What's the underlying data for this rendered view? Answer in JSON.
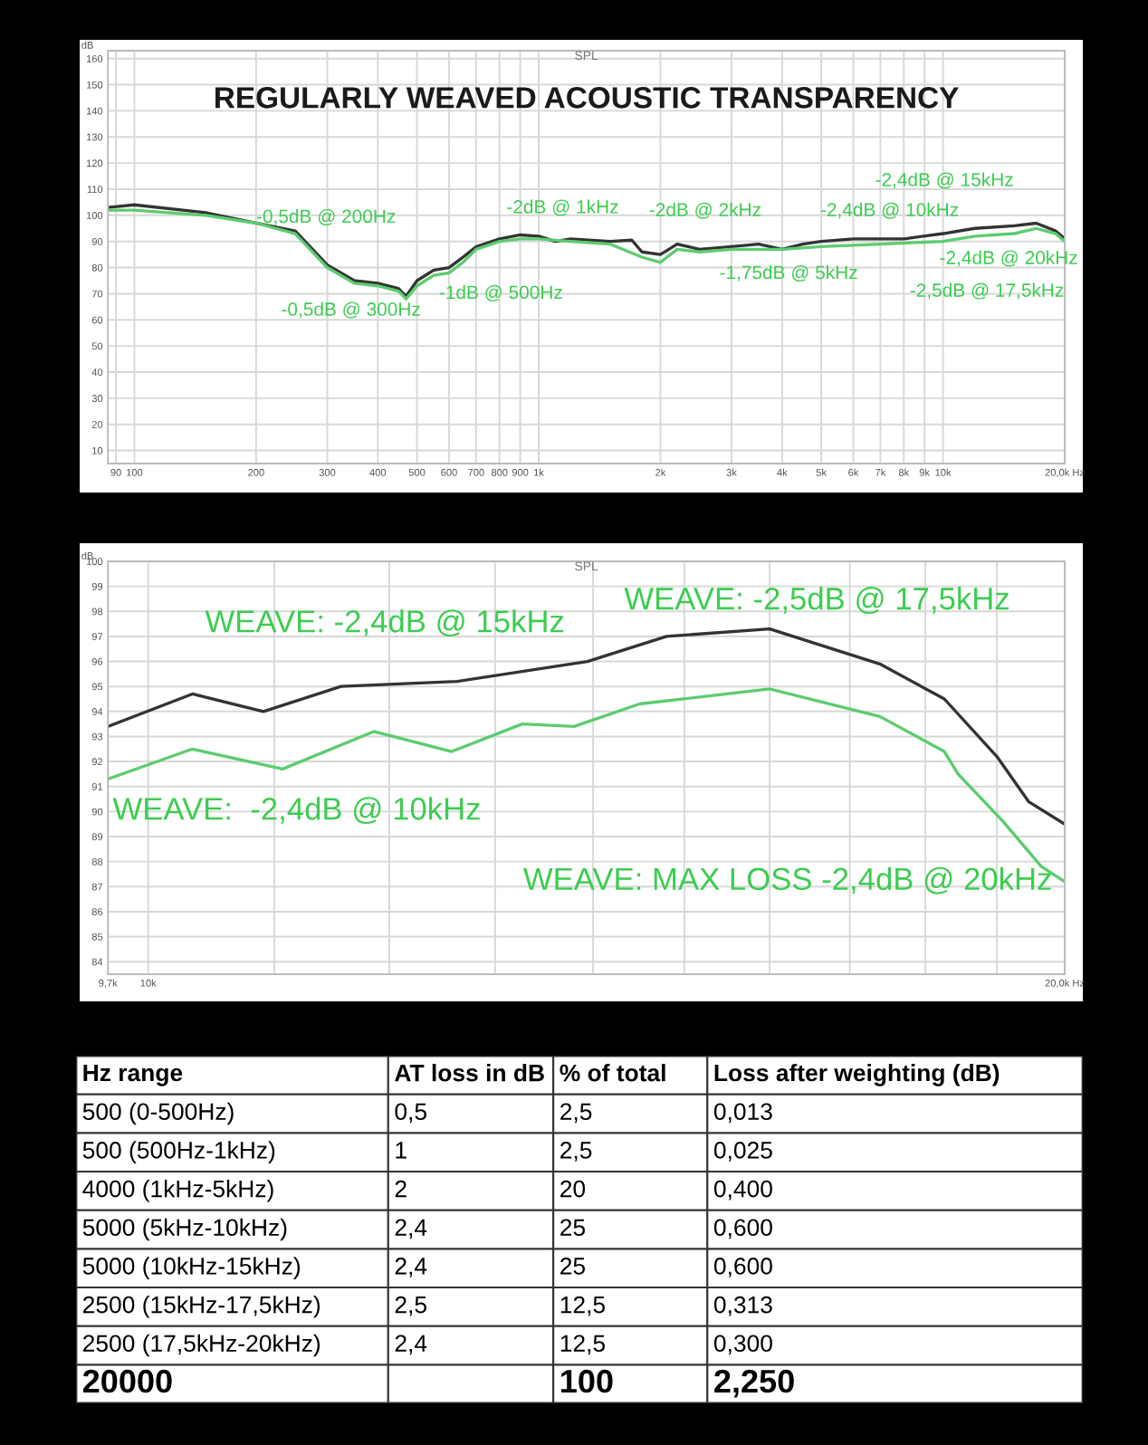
{
  "chart_data": [
    {
      "type": "line",
      "title": "SPL",
      "subtitle": "REGULARLY WEAVED ACOUSTIC TRANSPARENCY",
      "ylabel": "dB",
      "log": "x",
      "grid": true,
      "marker": "none",
      "line_style": "solid",
      "xlim": [
        86,
        20000
      ],
      "ylim": [
        5,
        163
      ],
      "xticks": [
        {
          "value": 90,
          "label": "90"
        },
        100,
        200,
        300,
        400,
        500,
        600,
        700,
        800,
        900,
        {
          "value": 1000,
          "label": "1k"
        },
        {
          "value": 2000,
          "label": "2k"
        },
        {
          "value": 3000,
          "label": "3k"
        },
        {
          "value": 4000,
          "label": "4k"
        },
        {
          "value": 5000,
          "label": "5k"
        },
        {
          "value": 6000,
          "label": "6k"
        },
        {
          "value": 7000,
          "label": "7k"
        },
        {
          "value": 8000,
          "label": "8k"
        },
        {
          "value": 9000,
          "label": "9k"
        },
        {
          "value": 10000,
          "label": "10k"
        },
        {
          "value": 20000,
          "label": "20,0k Hz"
        }
      ],
      "yticks": [
        10,
        20,
        30,
        40,
        50,
        60,
        70,
        80,
        90,
        100,
        110,
        120,
        130,
        140,
        150,
        160
      ],
      "series": [
        {
          "color": "#333333",
          "x": [
            86,
            100,
            150,
            200,
            250,
            300,
            350,
            400,
            450,
            470,
            500,
            550,
            600,
            650,
            700,
            800,
            900,
            1000,
            1100,
            1200,
            1500,
            1700,
            1800,
            2000,
            2200,
            2500,
            3000,
            3500,
            4000,
            4500,
            5000,
            6000,
            7000,
            8000,
            10000,
            12000,
            15000,
            17000,
            19000,
            20000
          ],
          "values": [
            103,
            104,
            101,
            97,
            94,
            81,
            75,
            74,
            72,
            69,
            75,
            79,
            80,
            84,
            88,
            91,
            92.5,
            92,
            90,
            91,
            90,
            90.5,
            86,
            85,
            89,
            87,
            88,
            89,
            87,
            89,
            90,
            91,
            91,
            91,
            93,
            95,
            96,
            97,
            94,
            91
          ]
        },
        {
          "color": "#5ccc6f",
          "x": [
            86,
            100,
            150,
            200,
            250,
            300,
            350,
            400,
            450,
            470,
            500,
            550,
            600,
            650,
            700,
            800,
            900,
            1000,
            1200,
            1500,
            1800,
            2000,
            2200,
            2500,
            3000,
            4000,
            5000,
            7000,
            10000,
            12000,
            15000,
            17000,
            19000,
            20000
          ],
          "values": [
            102,
            102,
            100,
            97,
            93,
            80,
            74,
            73,
            71,
            68,
            73,
            77,
            78,
            82,
            87,
            90,
            91,
            91,
            90,
            89,
            84,
            82,
            87,
            86,
            87,
            87,
            88,
            89,
            90,
            92,
            93,
            95,
            93,
            90
          ]
        }
      ],
      "annotations": [
        "-0,5dB @ 200Hz",
        "-0,5dB @ 300Hz",
        "-1dB @ 500Hz",
        "-2dB @ 1kHz",
        "-2dB @ 2kHz",
        "-1,75dB @ 5kHz",
        "-2,4dB @ 10kHz",
        "-2,4dB @ 15kHz",
        "-2,4dB @ 20kHz",
        "-2,5dB @ 17,5kHz"
      ]
    },
    {
      "type": "line",
      "title": "SPL",
      "ylabel": "dB",
      "log": "x",
      "grid": true,
      "marker": "none",
      "line_style": "solid",
      "xlim": [
        9700,
        20000
      ],
      "ylim": [
        83.5,
        100
      ],
      "xticks": [
        {
          "value": 9700,
          "label": "9,7k"
        },
        {
          "value": 10000,
          "label": "10k"
        },
        {
          "value": 11000,
          "label": null
        },
        {
          "value": 12000,
          "label": null
        },
        {
          "value": 13000,
          "label": null
        },
        {
          "value": 14000,
          "label": null
        },
        {
          "value": 15000,
          "label": null
        },
        {
          "value": 16000,
          "label": null
        },
        {
          "value": 17000,
          "label": null
        },
        {
          "value": 18000,
          "label": null
        },
        {
          "value": 19000,
          "label": null
        },
        {
          "value": 20000,
          "label": "20,0k Hz"
        }
      ],
      "yticks": [
        84,
        85,
        86,
        87,
        88,
        89,
        90,
        91,
        92,
        93,
        94,
        95,
        96,
        97,
        98,
        99,
        100
      ],
      "series": [
        {
          "color": "#333333",
          "x": [
            9700,
            10340,
            10910,
            11570,
            12630,
            13940,
            14800,
            16000,
            17390,
            18260,
            19000,
            19460,
            20000
          ],
          "values": [
            93.4,
            94.7,
            94.0,
            95.0,
            95.2,
            96.0,
            97.0,
            97.3,
            95.9,
            94.5,
            92.2,
            90.4,
            89.5
          ]
        },
        {
          "color": "#5ccc6f",
          "x": [
            9700,
            10340,
            11070,
            11860,
            12580,
            13270,
            13800,
            14500,
            16000,
            17390,
            18260,
            18450,
            19090,
            19650,
            20000
          ],
          "values": [
            91.3,
            92.5,
            91.7,
            93.2,
            92.4,
            93.5,
            93.4,
            94.3,
            94.9,
            93.8,
            92.4,
            91.5,
            89.6,
            87.8,
            87.2
          ]
        }
      ],
      "annotations": [
        "WEAVE: -2,4dB @ 15kHz",
        "WEAVE: -2,5dB @ 17,5kHz",
        "WEAVE:  -2,4dB @ 10kHz",
        "WEAVE: MAX LOSS -2,4dB @ 20kHz"
      ]
    },
    {
      "type": "other",
      "categories": [
        "Hz range",
        "AT loss in dB",
        "% of total",
        "Loss after weighting (dB)"
      ],
      "cell_labels": [
        [
          "500 (0-500Hz)",
          "0,5",
          "2,5",
          "0,013"
        ],
        [
          "500 (500Hz-1kHz)",
          "1",
          "2,5",
          "0,025"
        ],
        [
          "4000 (1kHz-5kHz)",
          "2",
          "20",
          "0,400"
        ],
        [
          "5000 (5kHz-10kHz)",
          "2,4",
          "25",
          "0,600"
        ],
        [
          "5000 (10kHz-15kHz)",
          "2,4",
          "25",
          "0,600"
        ],
        [
          "2500 (15kHz-17,5kHz)",
          "2,5",
          "12,5",
          "0,313"
        ],
        [
          "2500 (17,5kHz-20kHz)",
          "2,4",
          "12,5",
          "0,300"
        ],
        [
          "20000",
          null,
          "100",
          "2,250"
        ]
      ]
    }
  ]
}
